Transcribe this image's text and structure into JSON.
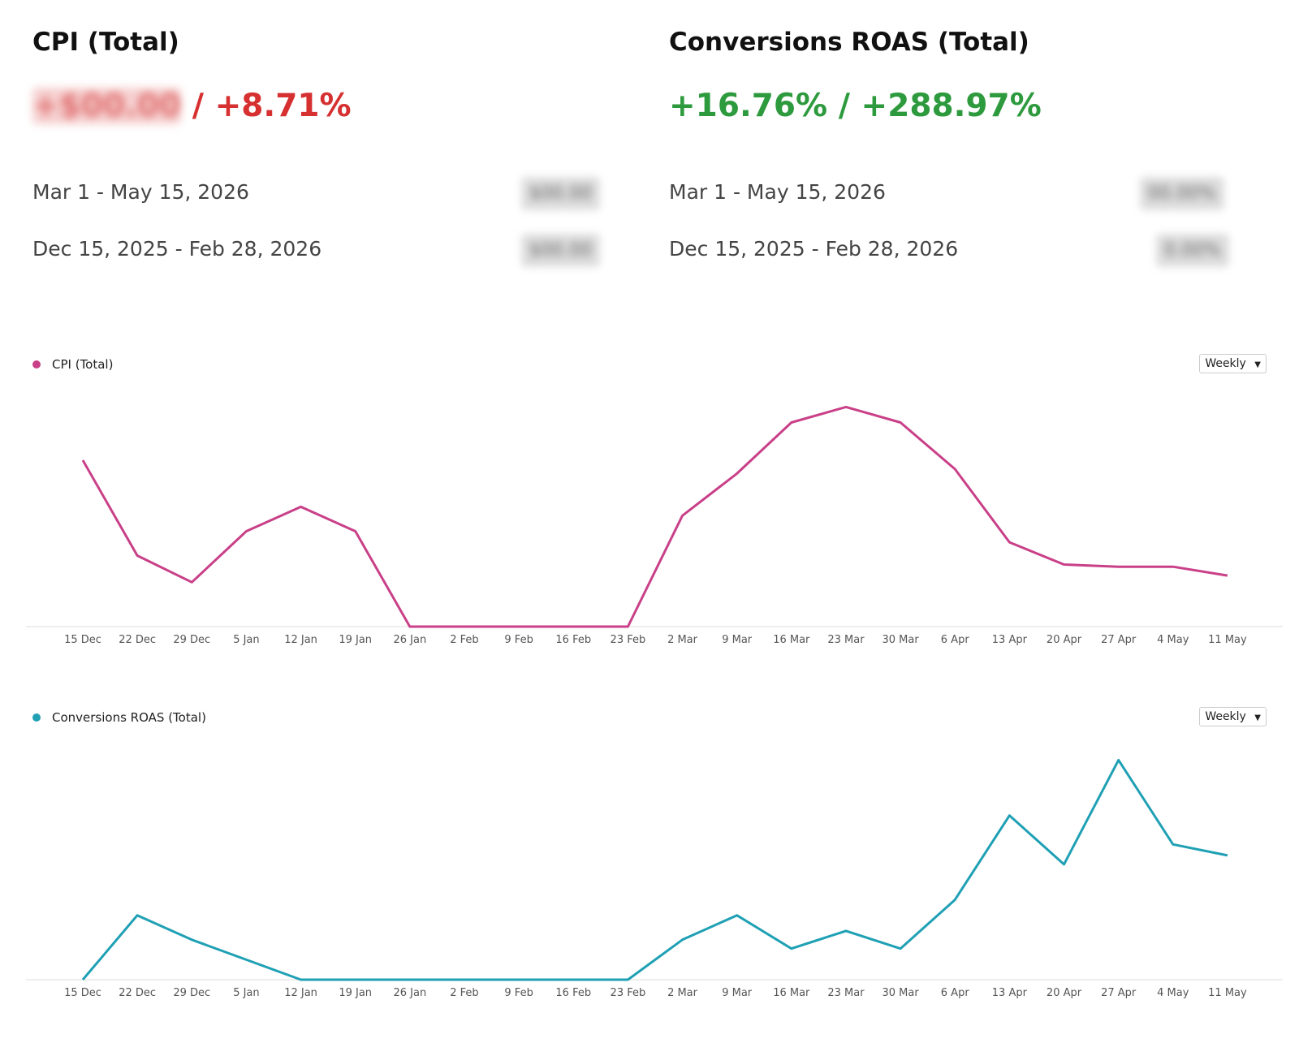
{
  "metrics": {
    "cpi": {
      "title": "CPI (Total)",
      "abs_change": "+$00.00",
      "separator": " / ",
      "pct_change": "+8.71%",
      "current_period": "Mar 1 - May 15, 2026",
      "current_value": "$00.00",
      "previous_period": "Dec 15, 2025 - Feb 28, 2026",
      "previous_value": "$00.00"
    },
    "roas": {
      "title": "Conversions ROAS (Total)",
      "change_text": "+16.76% / +288.97%",
      "current_period": "Mar 1 - May 15, 2026",
      "current_value": "00.00%",
      "previous_period": "Dec 15, 2025 - Feb 28, 2026",
      "previous_value": "0.00%"
    }
  },
  "colors": {
    "cpi": "#c94088",
    "roas": "#1fa0b4",
    "negative": "#d63031",
    "positive": "#2e9a3e"
  },
  "chart_data": [
    {
      "type": "line",
      "categories": [
        "15 Dec",
        "22 Dec",
        "29 Dec",
        "5 Jan",
        "12 Jan",
        "19 Jan",
        "26 Jan",
        "2 Feb",
        "9 Feb",
        "16 Feb",
        "23 Feb",
        "2 Mar",
        "9 Mar",
        "16 Mar",
        "23 Mar",
        "30 Mar",
        "6 Apr",
        "13 Apr",
        "20 Apr",
        "27 Apr",
        "4 May",
        "11 May"
      ],
      "series": [
        {
          "name": "CPI (Total)",
          "values": [
            75,
            32,
            20,
            43,
            54,
            43,
            0,
            0,
            0,
            0,
            0,
            50,
            69,
            92,
            99,
            92,
            71,
            38,
            28,
            27,
            27,
            23
          ]
        }
      ],
      "ylim": [
        0,
        105
      ],
      "granularity": "Weekly",
      "legend": "top-left"
    },
    {
      "type": "line",
      "categories": [
        "15 Dec",
        "22 Dec",
        "29 Dec",
        "5 Jan",
        "12 Jan",
        "19 Jan",
        "26 Jan",
        "2 Feb",
        "9 Feb",
        "16 Feb",
        "23 Feb",
        "2 Mar",
        "9 Mar",
        "16 Mar",
        "23 Mar",
        "30 Mar",
        "6 Apr",
        "13 Apr",
        "20 Apr",
        "27 Apr",
        "4 May",
        "11 May"
      ],
      "series": [
        {
          "name": "Conversions ROAS (Total)",
          "values": [
            0,
            29,
            18,
            9,
            0,
            0,
            0,
            0,
            0,
            0,
            0,
            18,
            29,
            14,
            22,
            14,
            36,
            74,
            52,
            99,
            61,
            56
          ]
        }
      ],
      "ylim": [
        0,
        105
      ],
      "granularity": "Weekly",
      "legend": "top-left"
    }
  ]
}
